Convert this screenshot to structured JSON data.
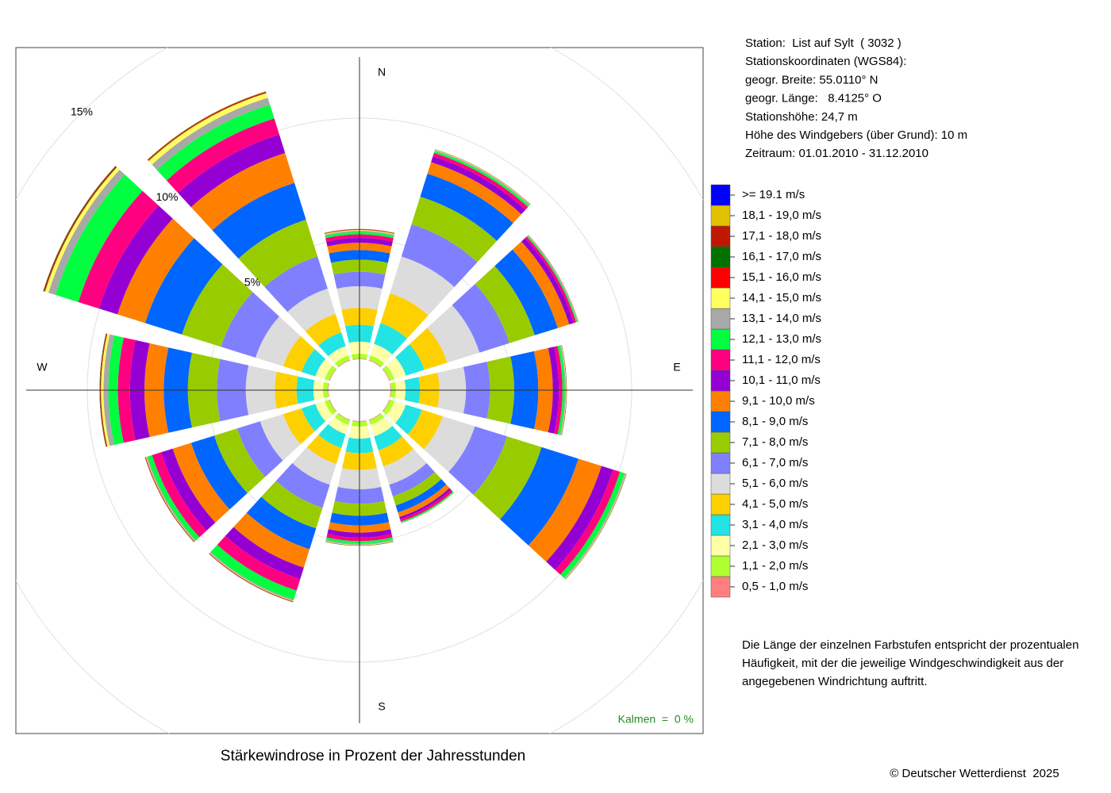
{
  "chart_data": {
    "type": "windrose",
    "title": "Stärkewindrose in Prozent der Jahresstunden",
    "categories": [
      "N",
      null,
      null,
      "E",
      null,
      null,
      "S",
      null,
      null,
      "W",
      null,
      null
    ],
    "rlim": [
      0,
      15
    ],
    "rticks": [
      {
        "value": 5,
        "label": "5%"
      },
      {
        "value": 10,
        "label": "10%"
      },
      {
        "value": 15,
        "label": "15%"
      }
    ],
    "grid": true,
    "series": [
      {
        "name": "0,5 - 1,0 m/s",
        "color": "#ff7f7f",
        "values": [
          0.03,
          0.03,
          0.03,
          0.03,
          0.03,
          0.03,
          0.03,
          0.03,
          0.03,
          0.03,
          0.03,
          0.03
        ]
      },
      {
        "name": "1,1 - 2,0 m/s",
        "color": "#b0ff30",
        "values": [
          0.2,
          0.2,
          0.2,
          0.2,
          0.2,
          0.2,
          0.2,
          0.2,
          0.2,
          0.2,
          0.2,
          0.2
        ]
      },
      {
        "name": "2,1 - 3,0 m/s",
        "color": "#ffffa8",
        "values": [
          0.5,
          0.5,
          0.5,
          0.4,
          0.5,
          0.5,
          0.5,
          0.4,
          0.4,
          0.4,
          0.4,
          0.4
        ]
      },
      {
        "name": "3,1 - 4,0 m/s",
        "color": "#22e4e4",
        "values": [
          0.7,
          0.9,
          0.8,
          0.6,
          0.7,
          0.6,
          0.6,
          0.6,
          0.6,
          0.7,
          0.6,
          0.6
        ]
      },
      {
        "name": "4,1 - 5,0 m/s",
        "color": "#ffd000",
        "values": [
          0.7,
          1.3,
          1.0,
          0.8,
          0.9,
          0.7,
          0.7,
          0.7,
          0.8,
          0.9,
          0.8,
          0.8
        ]
      },
      {
        "name": "5,1 - 6,0 m/s",
        "color": "#dcdcdc",
        "values": [
          0.9,
          1.6,
          1.4,
          1.1,
          1.4,
          0.8,
          0.8,
          0.9,
          1.0,
          1.2,
          1.2,
          1.1
        ]
      },
      {
        "name": "6,1 - 7,0 m/s",
        "color": "#8080ff",
        "values": [
          0.6,
          1.4,
          1.3,
          1.0,
          1.4,
          0.5,
          0.6,
          1.0,
          1.0,
          1.2,
          1.5,
          1.4
        ]
      },
      {
        "name": "7,1 - 8,0 m/s",
        "color": "#99cc00",
        "values": [
          0.5,
          1.2,
          1.1,
          1.0,
          1.5,
          0.4,
          0.5,
          0.9,
          1.0,
          1.2,
          1.7,
          1.6
        ]
      },
      {
        "name": "8,1 - 9,0 m/s",
        "color": "#0066ff",
        "values": [
          0.4,
          1.0,
          1.0,
          1.0,
          1.6,
          0.3,
          0.4,
          0.9,
          1.0,
          1.0,
          1.6,
          1.6
        ]
      },
      {
        "name": "9,1 - 10,0 m/s",
        "color": "#ff8000",
        "values": [
          0.3,
          0.5,
          0.5,
          0.6,
          1.0,
          0.2,
          0.3,
          0.8,
          0.8,
          0.8,
          1.2,
          1.3
        ]
      },
      {
        "name": "10,1 - 11,0 m/s",
        "color": "#9400d3",
        "values": [
          0.2,
          0.25,
          0.2,
          0.25,
          0.5,
          0.1,
          0.2,
          0.5,
          0.5,
          0.6,
          0.8,
          0.8
        ]
      },
      {
        "name": "11,1 - 12,0 m/s",
        "color": "#ff0080",
        "values": [
          0.15,
          0.15,
          0.1,
          0.15,
          0.3,
          0.1,
          0.15,
          0.5,
          0.4,
          0.5,
          0.9,
          0.7
        ]
      },
      {
        "name": "12,1 - 13,0 m/s",
        "color": "#00ff40",
        "values": [
          0.1,
          0.08,
          0.05,
          0.1,
          0.2,
          0.05,
          0.1,
          0.4,
          0.2,
          0.4,
          1.0,
          0.6
        ]
      },
      {
        "name": "13,1 - 14,0 m/s",
        "color": "#a8a8a8",
        "values": [
          0.05,
          0.04,
          0.03,
          0.04,
          0.05,
          0.02,
          0.05,
          0.05,
          0.05,
          0.2,
          0.3,
          0.3
        ]
      },
      {
        "name": "14,1 - 15,0 m/s",
        "color": "#ffff60",
        "values": [
          0.03,
          0.02,
          0.01,
          0.02,
          0.02,
          0.01,
          0.02,
          0.02,
          0.02,
          0.1,
          0.15,
          0.2
        ]
      },
      {
        "name": "15,1 - 16,0 m/s",
        "color": "#ff0000",
        "values": [
          0.02,
          0.01,
          0.01,
          0.01,
          0.01,
          0,
          0.01,
          0.02,
          0.02,
          0.03,
          0.03,
          0.03
        ]
      },
      {
        "name": "16,1 - 17,0 m/s",
        "color": "#007000",
        "values": [
          0.01,
          0.01,
          0,
          0.01,
          0.01,
          0,
          0.01,
          0.01,
          0.01,
          0.02,
          0.03,
          0.02
        ]
      },
      {
        "name": "17,1 - 18,0 m/s",
        "color": "#c01800",
        "values": [
          0.01,
          0,
          0,
          0,
          0,
          0,
          0,
          0.01,
          0.01,
          0.01,
          0.02,
          0.02
        ]
      },
      {
        "name": "18,1 - 19,0 m/s",
        "color": "#e0c000",
        "values": [
          0,
          0,
          0,
          0,
          0,
          0,
          0,
          0,
          0,
          0,
          0,
          0.01
        ]
      },
      {
        "name": ">= 19.1 m/s",
        "color": "#0000ff",
        "values": [
          0,
          0,
          0,
          0,
          0,
          0,
          0,
          0,
          0,
          0,
          0,
          0
        ]
      }
    ],
    "calm_label": "Kalmen  =  0 %",
    "station_info": [
      "Station:  List auf Sylt  ( 3032 )",
      "Stationskoordinaten (WGS84):",
      "geogr. Breite: 55.0110° N",
      "geogr. Länge:   8.4125° O",
      "Stationshöhe: 24,7 m",
      "Höhe des Windgebers (über Grund): 10 m",
      "Zeitraum: 01.01.2010 - 31.12.2010"
    ],
    "note": [
      "Die Länge der einzelnen Farbstufen entspricht der prozentualen",
      "Häufigkeit, mit der die jeweilige Windgeschwindigkeit aus der",
      "angegebenen Windrichtung auftritt."
    ],
    "copyright": "© Deutscher Wetterdienst  2025"
  }
}
